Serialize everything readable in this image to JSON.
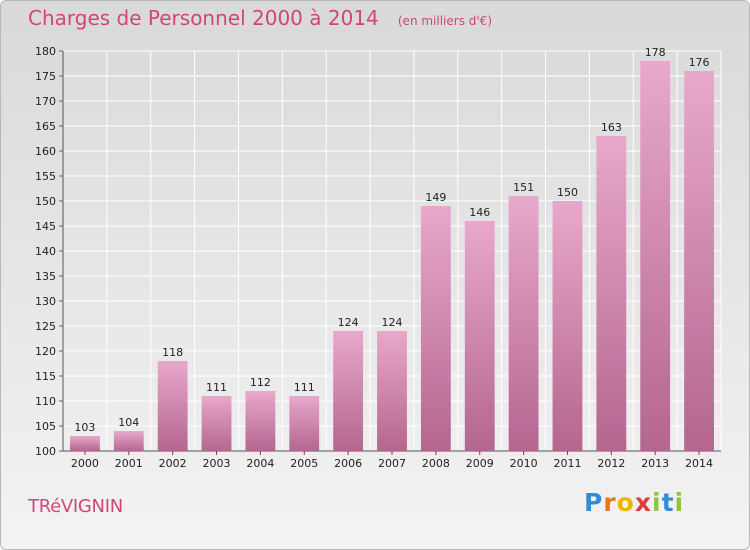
{
  "header": {
    "title": "Charges de Personnel 2000 à 2014",
    "unit": "(en milliers d'€)"
  },
  "footer": {
    "commune": "TRéVIGNIN",
    "logo_letters": [
      "P",
      "r",
      "o",
      "x",
      "i",
      "t",
      "i"
    ],
    "logo_colors": [
      "#2f8fd6",
      "#e07b1d",
      "#f0b400",
      "#e23a3a",
      "#8fc43f",
      "#2f8fd6",
      "#8fc43f"
    ]
  },
  "colors": {
    "bar_light": "#e8a8cc",
    "bar_dark": "#b4668f",
    "title": "#d1457a"
  },
  "chart_data": {
    "type": "bar",
    "title": "Charges de Personnel 2000 à 2014",
    "subtitle": "(en milliers d'€)",
    "xlabel": "",
    "ylabel": "",
    "ylim": [
      100,
      180
    ],
    "yticks": [
      100,
      105,
      110,
      115,
      120,
      125,
      130,
      135,
      140,
      145,
      150,
      155,
      160,
      165,
      170,
      175,
      180
    ],
    "grid": true,
    "categories": [
      "2000",
      "2001",
      "2002",
      "2003",
      "2004",
      "2005",
      "2006",
      "2007",
      "2008",
      "2009",
      "2010",
      "2011",
      "2012",
      "2013",
      "2014"
    ],
    "values": [
      103,
      104,
      118,
      111,
      112,
      111,
      124,
      124,
      149,
      146,
      151,
      150,
      163,
      178,
      176
    ]
  }
}
